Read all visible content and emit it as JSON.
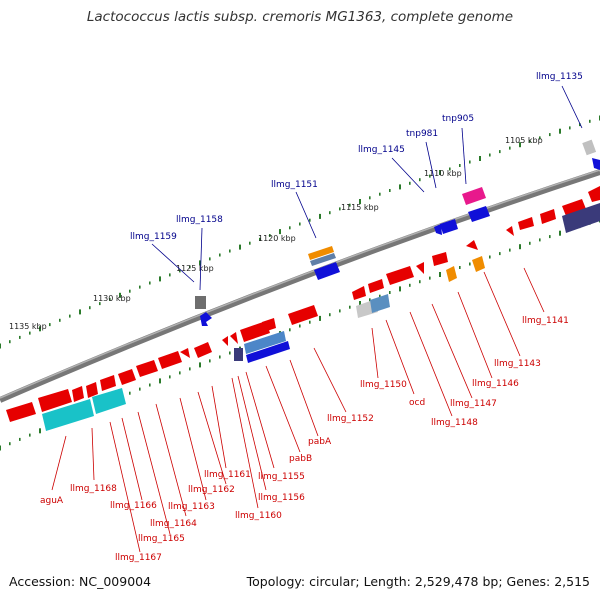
{
  "title": "Lactococcus lactis subsp. cremoris MG1363, complete genome",
  "footer": {
    "accession": "Accession: NC_009004",
    "summary": "Topology: circular; Length: 2,529,478 bp; Genes: 2,515"
  },
  "colors": {
    "backbone": "#777777",
    "tick": "#2a7a2a",
    "kbp_label": "#222222",
    "label_outer": "#00008b",
    "label_inner": "#cc0000",
    "gene_red": "#e60000",
    "gene_cyan": "#19c2c8",
    "gene_blue": "#1010d8",
    "gene_navy": "#3a3a7a",
    "gene_gray": "#7a7a7a",
    "gene_lightgray": "#c0c0c0",
    "gene_steel": "#3f6fa8",
    "gene_orange": "#f08c00",
    "gene_magenta": "#e8198c"
  },
  "kbp_labels": [
    "1105 kbp",
    "1110 kbp",
    "1115 kbp",
    "1120 kbp",
    "1125 kbp",
    "1130 kbp",
    "1135 kbp"
  ],
  "outer_labels": [
    "llmg_1135",
    "tnp905",
    "tnp981",
    "llmg_1145",
    "llmg_1151",
    "llmg_1158",
    "llmg_1159"
  ],
  "inner_labels": [
    "llmg_1141",
    "llmg_1143",
    "llmg_1146",
    "llmg_1147",
    "llmg_1148",
    "ocd",
    "llmg_1150",
    "llmg_1152",
    "pabA",
    "pabB",
    "llmg_1155",
    "llmg_1156",
    "llmg_1160",
    "llmg_1161",
    "llmg_1162",
    "llmg_1163",
    "llmg_1164",
    "llmg_1165",
    "llmg_1166",
    "llmg_1167",
    "llmg_1168",
    "aguA"
  ]
}
